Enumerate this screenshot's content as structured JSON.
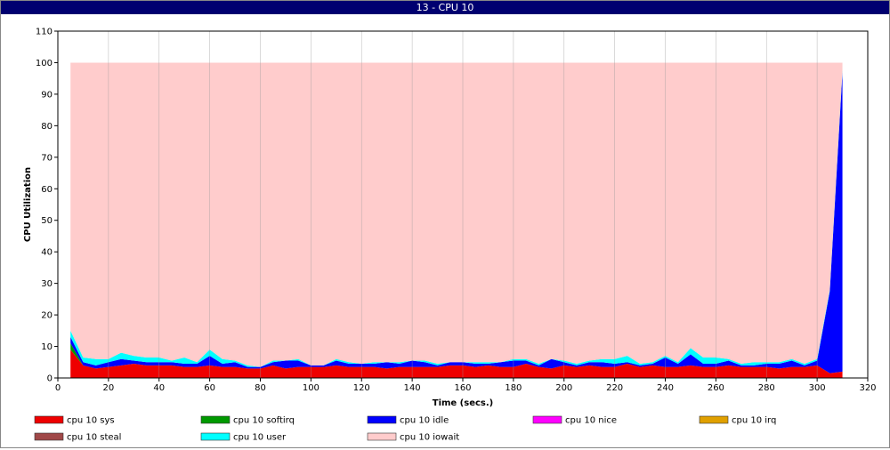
{
  "chart_data": {
    "type": "stacked-area",
    "title": "13 - CPU 10",
    "xlabel": "Time (secs.)",
    "ylabel": "CPU Utilization",
    "x": [
      5,
      10,
      15,
      20,
      25,
      30,
      35,
      40,
      45,
      50,
      55,
      60,
      65,
      70,
      75,
      80,
      85,
      90,
      95,
      100,
      105,
      110,
      115,
      120,
      125,
      130,
      135,
      140,
      145,
      150,
      155,
      160,
      165,
      170,
      175,
      180,
      185,
      190,
      195,
      200,
      205,
      210,
      215,
      220,
      225,
      230,
      235,
      240,
      245,
      250,
      255,
      260,
      265,
      270,
      275,
      280,
      285,
      290,
      295,
      300,
      305,
      310
    ],
    "xlim": [
      0,
      320
    ],
    "xticks": [
      0,
      20,
      40,
      60,
      80,
      100,
      120,
      140,
      160,
      180,
      200,
      220,
      240,
      260,
      280,
      300,
      320
    ],
    "ylim": [
      0,
      110
    ],
    "yticks": [
      0,
      10,
      20,
      30,
      40,
      50,
      60,
      70,
      80,
      90,
      100,
      110
    ],
    "grid": true,
    "series": [
      {
        "name": "cpu 10 sys",
        "color": "#ee0000",
        "values": [
          9,
          4,
          3,
          3.5,
          4,
          4.5,
          4,
          4,
          4,
          3.5,
          3.5,
          4,
          3.5,
          3.5,
          3,
          3,
          4,
          3,
          3.5,
          3.5,
          3.5,
          4,
          3.5,
          3.5,
          3.5,
          3,
          3.5,
          3.5,
          3.5,
          3.5,
          4,
          4,
          3.5,
          4,
          3.5,
          3.5,
          4.5,
          3.5,
          3,
          4,
          3.5,
          4,
          3.5,
          3.5,
          4.5,
          3.5,
          4,
          3.5,
          3.5,
          4,
          3.5,
          3.5,
          4,
          3.5,
          3.5,
          3.5,
          3,
          3.5,
          3.5,
          4,
          1.5,
          2
        ]
      },
      {
        "name": "cpu 10 softirq",
        "color": "#009900",
        "values": [
          2,
          0,
          0,
          0,
          0,
          0,
          0,
          0,
          0,
          0,
          0,
          0,
          0,
          0,
          0,
          0,
          0,
          0,
          0,
          0,
          0,
          0,
          0,
          0,
          0,
          0,
          0,
          0,
          0,
          0,
          0,
          0,
          0,
          0,
          0,
          0,
          0,
          0,
          0,
          0,
          0,
          0,
          0,
          0,
          0,
          0,
          0,
          0,
          0,
          0,
          0,
          0,
          0,
          0,
          0,
          0,
          0,
          0,
          0,
          0,
          0,
          0
        ]
      },
      {
        "name": "cpu 10 idle",
        "color": "#0000ff",
        "values": [
          2,
          1,
          1,
          1.5,
          2,
          1,
          1,
          1,
          1,
          1,
          1,
          3,
          1,
          1.5,
          0.5,
          0.5,
          1,
          2.5,
          2,
          0.5,
          0.5,
          1.5,
          1,
          1,
          1,
          2,
          1,
          2,
          1.5,
          0.5,
          1,
          1,
          1,
          0.5,
          1.5,
          2,
          1,
          0.5,
          3,
          1,
          0.5,
          1,
          1.5,
          1,
          0.5,
          0.5,
          0.5,
          3,
          1,
          3.5,
          1,
          1,
          1.5,
          0.5,
          0.5,
          1,
          1.5,
          2,
          0.5,
          1.5,
          26,
          95
        ]
      },
      {
        "name": "cpu 10 nice",
        "color": "#ff00ff",
        "values": [
          0,
          0,
          0,
          0,
          0,
          0,
          0,
          0,
          0,
          0,
          0,
          0,
          0,
          0,
          0,
          0,
          0,
          0,
          0,
          0,
          0,
          0,
          0,
          0,
          0,
          0,
          0,
          0,
          0,
          0,
          0,
          0,
          0,
          0,
          0,
          0,
          0,
          0,
          0,
          0,
          0,
          0,
          0,
          0,
          0,
          0,
          0,
          0,
          0,
          0,
          0,
          0,
          0,
          0,
          0,
          0,
          0,
          0,
          0,
          0,
          0,
          0
        ]
      },
      {
        "name": "cpu 10 irq",
        "color": "#e0a000",
        "values": [
          0,
          0,
          0,
          0,
          0,
          0,
          0,
          0,
          0,
          0,
          0,
          0,
          0,
          0,
          0,
          0,
          0,
          0,
          0,
          0,
          0,
          0,
          0,
          0,
          0,
          0,
          0,
          0,
          0,
          0,
          0,
          0,
          0,
          0,
          0,
          0,
          0,
          0,
          0,
          0,
          0,
          0,
          0,
          0,
          0,
          0,
          0,
          0,
          0,
          0,
          0,
          0,
          0,
          0,
          0,
          0,
          0,
          0,
          0,
          0,
          0,
          0
        ]
      },
      {
        "name": "cpu 10 steal",
        "color": "#a04848",
        "values": [
          0,
          0,
          0,
          0,
          0,
          0,
          0,
          0,
          0,
          0,
          0,
          0,
          0,
          0,
          0,
          0,
          0,
          0,
          0,
          0,
          0,
          0,
          0,
          0,
          0,
          0,
          0,
          0,
          0,
          0,
          0,
          0,
          0,
          0,
          0,
          0,
          0,
          0,
          0,
          0,
          0,
          0,
          0,
          0,
          0,
          0,
          0,
          0,
          0,
          0,
          0,
          0,
          0,
          0,
          0,
          0,
          0,
          0,
          0,
          0,
          0,
          0
        ]
      },
      {
        "name": "cpu 10 user",
        "color": "#00ffff",
        "values": [
          2,
          1.5,
          2,
          1,
          2,
          1.5,
          1.5,
          1.5,
          0.5,
          2,
          0.5,
          2,
          1.5,
          0.5,
          0.5,
          0,
          0.5,
          0,
          0.5,
          0,
          0,
          0.5,
          0.5,
          0,
          0.5,
          0,
          0.5,
          0,
          0.5,
          0.5,
          0,
          0,
          0.5,
          0.5,
          0,
          0.5,
          0.5,
          0.5,
          0,
          0.5,
          0.5,
          0.5,
          1,
          1.5,
          2,
          0.5,
          0.5,
          0.5,
          0.5,
          2,
          2,
          2,
          0.5,
          0.5,
          1,
          0.5,
          0.5,
          0.5,
          0.5,
          0.5,
          0.5,
          0.5
        ]
      },
      {
        "name": "cpu 10 iowait",
        "color": "#ffcccc",
        "values": [
          85,
          93.5,
          94,
          94,
          92,
          93,
          93.5,
          93.5,
          94.5,
          93.5,
          95,
          91,
          94,
          94.5,
          96,
          96.5,
          94.5,
          94.5,
          94,
          96,
          96,
          94,
          95,
          95.5,
          95,
          95,
          95,
          94.5,
          94.5,
          95.5,
          95,
          95,
          95,
          95,
          95,
          94,
          94,
          95.5,
          94,
          94.5,
          95.5,
          94.5,
          94,
          94,
          93,
          95.5,
          95,
          93,
          95,
          90.5,
          93.5,
          93.5,
          94,
          95.5,
          95,
          95,
          95,
          94,
          95.5,
          94,
          72,
          2.5
        ]
      }
    ]
  }
}
